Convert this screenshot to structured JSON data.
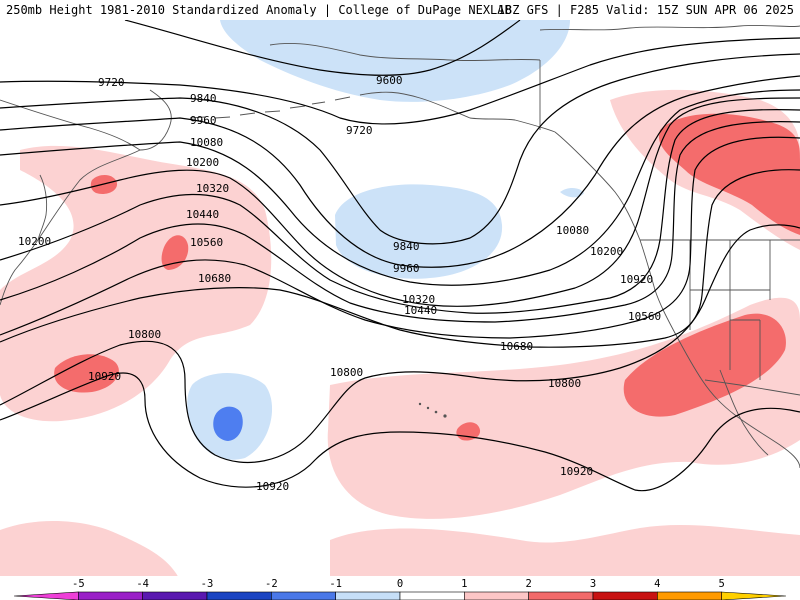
{
  "header": {
    "left": "250mb Height 1981-2010 Standardized Anomaly | College of DuPage NEXLAB",
    "right": "18Z GFS | F285 Valid: 15Z SUN APR 06 2025"
  },
  "contour_labels": [
    "9600",
    "9720",
    "9720",
    "9840",
    "9840",
    "9960",
    "9960",
    "10080",
    "10080",
    "10200",
    "10200",
    "10200",
    "10320",
    "10320",
    "10440",
    "10440",
    "10560",
    "10560",
    "10680",
    "10680",
    "10800",
    "10800",
    "10800",
    "10920",
    "10920",
    "10920",
    "10920"
  ],
  "colorbar": {
    "ticks": [
      "-5",
      "-4",
      "-3",
      "-2",
      "-1",
      "0",
      "1",
      "2",
      "3",
      "4",
      "5"
    ],
    "bins": [
      {
        "color": "#ee3fd8"
      },
      {
        "color": "#9a1fc7"
      },
      {
        "color": "#5a18b0"
      },
      {
        "color": "#1a44c2"
      },
      {
        "color": "#4a78e8"
      },
      {
        "color": "#c6dff8"
      },
      {
        "color": "#ffffff"
      },
      {
        "color": "#fcc6c6"
      },
      {
        "color": "#f26a6a"
      },
      {
        "color": "#c81212"
      },
      {
        "color": "#ff9a00"
      },
      {
        "color": "#ffd000"
      }
    ]
  },
  "colors": {
    "anom_pos_1": "#fcd2d2",
    "anom_pos_2": "#f46c6c",
    "anom_neg_1": "#cce2f8",
    "anom_neg_2": "#4e7ef0",
    "coastline": "#555555",
    "contour": "#000000"
  }
}
